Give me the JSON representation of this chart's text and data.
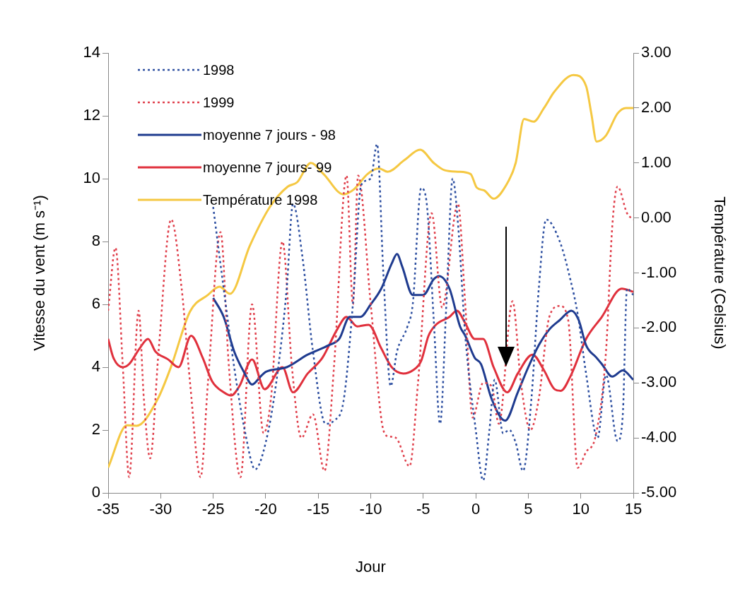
{
  "chart_data": {
    "type": "line",
    "xlabel": "Jour",
    "ylabel": "Vitesse du vent (m s⁻¹)",
    "y2label": "Température (Celsius)",
    "xlim": [
      -35,
      15
    ],
    "xticks": [
      -35,
      -30,
      -25,
      -20,
      -15,
      -10,
      -5,
      0,
      5,
      10,
      15
    ],
    "ylim": [
      0,
      14
    ],
    "yticks": [
      0,
      2,
      4,
      6,
      8,
      10,
      12,
      14
    ],
    "y2lim": [
      -5,
      3
    ],
    "y2ticks": [
      {
        "value": -5,
        "label": "-5.00"
      },
      {
        "value": -4,
        "label": "-4.00"
      },
      {
        "value": -3,
        "label": "-3.00"
      },
      {
        "value": -2,
        "label": "-2.00"
      },
      {
        "value": -1,
        "label": "-1.00"
      },
      {
        "value": 0,
        "label": "0.00"
      },
      {
        "value": 1,
        "label": "1.00"
      },
      {
        "value": 2,
        "label": "2.00"
      },
      {
        "value": 3,
        "label": "3.00"
      }
    ],
    "grid": false,
    "legend": "top left",
    "marker": "none",
    "series": [
      {
        "name": "1998",
        "color": "#2c4ea0",
        "line_style": "dotted",
        "x": [
          -25,
          -24,
          -23,
          -22,
          -21,
          -20,
          -19,
          -18,
          -17.4,
          -16.5,
          -15.5,
          -14.3,
          -13.5,
          -12.6,
          -11.7,
          -10.9,
          -10,
          -9.4,
          -8.8,
          -8.1,
          -7.5,
          -6.5,
          -6,
          -5.2,
          -4.7,
          -4,
          -3.4,
          -2.8,
          -2.2,
          -1.7,
          -1,
          0,
          0.7,
          1.3,
          1.8,
          2.6,
          3.2,
          3.8,
          4.5,
          5.3,
          6,
          6.7,
          8,
          9,
          9.7,
          10.5,
          11.6,
          12.4,
          13.5,
          14,
          14.4,
          15
        ],
        "values": [
          9.1,
          6.5,
          4.0,
          2.0,
          0.75,
          1.6,
          3.5,
          6.5,
          9.2,
          7.5,
          4.5,
          2.2,
          2.3,
          2.9,
          6,
          9.8,
          10,
          11.1,
          7,
          3.4,
          4.5,
          5.3,
          6,
          9.7,
          9.3,
          5.5,
          2.2,
          6,
          10.0,
          8.6,
          5,
          2.0,
          0.4,
          2,
          3.6,
          1.9,
          2.0,
          1.6,
          0.7,
          3,
          6.5,
          8.7,
          8.0,
          6.8,
          5.7,
          3.8,
          1.75,
          3.75,
          1.65,
          2.5,
          6.5,
          6.3
        ]
      },
      {
        "name": "1999",
        "color": "#e0404c",
        "line_style": "dotted",
        "x": [
          -35,
          -34.3,
          -33.6,
          -33,
          -32.1,
          -31.6,
          -31,
          -30.2,
          -29,
          -28,
          -27.2,
          -26.2,
          -25.5,
          -24.3,
          -23.5,
          -22.4,
          -21.3,
          -20.2,
          -19.5,
          -18.4,
          -17.5,
          -16.6,
          -15.5,
          -14.4,
          -13.5,
          -12.3,
          -11.7,
          -11.2,
          -10,
          -8.8,
          -8.3,
          -7.6,
          -6.3,
          -5.5,
          -4.2,
          -3.2,
          -1.7,
          -1,
          -0.3,
          0.7,
          1.5,
          2.2,
          3.5,
          4.3,
          5.2,
          6,
          7,
          8,
          8.8,
          9.7,
          10.5,
          11.4,
          12.4,
          13,
          13.5,
          14.4,
          15
        ],
        "values": [
          5.8,
          7.8,
          4,
          0.5,
          5.8,
          3,
          1.1,
          4.5,
          8.7,
          6.5,
          3.5,
          0.5,
          3.5,
          8.3,
          4,
          0.5,
          6.0,
          1.9,
          3,
          8.0,
          4,
          1.75,
          2.5,
          0.7,
          4,
          10.1,
          6,
          10.1,
          6,
          2,
          1.8,
          1.75,
          0.85,
          3.5,
          8.9,
          5.9,
          9.2,
          6,
          2.4,
          3.5,
          3.4,
          2.2,
          6.1,
          3.5,
          2.0,
          3,
          5.6,
          5.95,
          5.5,
          0.8,
          1.3,
          1.8,
          4.5,
          8.5,
          9.75,
          8.9,
          8.7
        ]
      },
      {
        "name": "moyenne 7 jours - 98",
        "color": "#1f3b8f",
        "line_style": "solid",
        "x": [
          -25,
          -24,
          -23,
          -22,
          -21.3,
          -20.5,
          -20,
          -18,
          -16,
          -14,
          -13,
          -12,
          -11,
          -10,
          -9,
          -8,
          -7.5,
          -7,
          -6,
          -5,
          -4,
          -3.5,
          -2.5,
          -1.5,
          -1,
          -0.1,
          0.5,
          1.5,
          2.8,
          4,
          5,
          6,
          7,
          8,
          9.1,
          9.8,
          10.5,
          11.5,
          12,
          13,
          14,
          15
        ],
        "values": [
          6.2,
          5.6,
          4.5,
          3.8,
          3.45,
          3.7,
          3.85,
          4.0,
          4.4,
          4.7,
          4.9,
          5.6,
          5.6,
          6.0,
          6.5,
          7.3,
          7.6,
          7.2,
          6.3,
          6.3,
          6.8,
          6.9,
          6.5,
          5.3,
          5.0,
          4.3,
          4.1,
          3.0,
          2.3,
          3.2,
          4.0,
          4.7,
          5.2,
          5.5,
          5.8,
          5.5,
          4.7,
          4.3,
          4.1,
          3.7,
          3.9,
          3.6
        ]
      },
      {
        "name": "moyenne 7 jours- 99",
        "color": "#e0303c",
        "line_style": "solid",
        "x": [
          -35,
          -34.5,
          -33.6,
          -33,
          -32,
          -31.2,
          -30.5,
          -29.3,
          -28.3,
          -27.1,
          -26,
          -25.1,
          -24,
          -23.3,
          -22.5,
          -21.3,
          -20.1,
          -18.4,
          -17.4,
          -16,
          -14.6,
          -13.2,
          -12.3,
          -11.3,
          -10.2,
          -9,
          -8,
          -6.9,
          -6,
          -5.2,
          -4.5,
          -3.8,
          -2.5,
          -1.8,
          -1,
          -0.1,
          0.7,
          1.7,
          3,
          4,
          5.4,
          6.5,
          7.5,
          8.1,
          9,
          10.5,
          12,
          13.9,
          15
        ],
        "values": [
          4.9,
          4.3,
          4.0,
          4.1,
          4.6,
          4.9,
          4.5,
          4.25,
          4.0,
          5.0,
          4.3,
          3.55,
          3.2,
          3.1,
          3.4,
          4.25,
          3.3,
          4.0,
          3.2,
          3.8,
          4.3,
          5.2,
          5.6,
          5.3,
          5.35,
          4.6,
          4.0,
          3.8,
          3.9,
          4.2,
          5.0,
          5.35,
          5.6,
          5.8,
          5.4,
          4.9,
          4.9,
          4.0,
          3.2,
          3.8,
          4.4,
          3.9,
          3.3,
          3.25,
          3.7,
          4.9,
          5.6,
          6.5,
          6.4
        ]
      },
      {
        "name": "Température 1998",
        "color": "#f5c842",
        "line_style": "solid",
        "axis": "y2",
        "x": [
          -35,
          -33.2,
          -32.3,
          -30.3,
          -29,
          -27.2,
          -25.5,
          -24.4,
          -23.4,
          -21.5,
          -19.6,
          -17.9,
          -17,
          -15.7,
          -14.5,
          -12.6,
          -11.6,
          -10.3,
          -9.2,
          -8.4,
          -6.8,
          -5.3,
          -4,
          -3,
          -1.7,
          -0.5,
          0.1,
          0.8,
          1.7,
          2.9,
          3.8,
          4.6,
          5.5,
          6.5,
          7.5,
          9.3,
          10.5,
          11,
          11.5,
          12.4,
          13.5,
          14.3,
          15
        ],
        "values": [
          -4.54,
          -3.77,
          -3.78,
          -3.3,
          -2.7,
          -1.7,
          -1.4,
          -1.25,
          -1.38,
          -0.5,
          0.2,
          0.57,
          0.65,
          1.0,
          0.8,
          0.43,
          0.52,
          0.8,
          0.9,
          0.84,
          1.05,
          1.24,
          1.0,
          0.87,
          0.84,
          0.8,
          0.55,
          0.5,
          0.35,
          0.6,
          1.0,
          1.8,
          1.75,
          2.0,
          2.3,
          2.6,
          2.4,
          1.9,
          1.39,
          1.5,
          1.9,
          2.0,
          2.0
        ]
      }
    ]
  }
}
